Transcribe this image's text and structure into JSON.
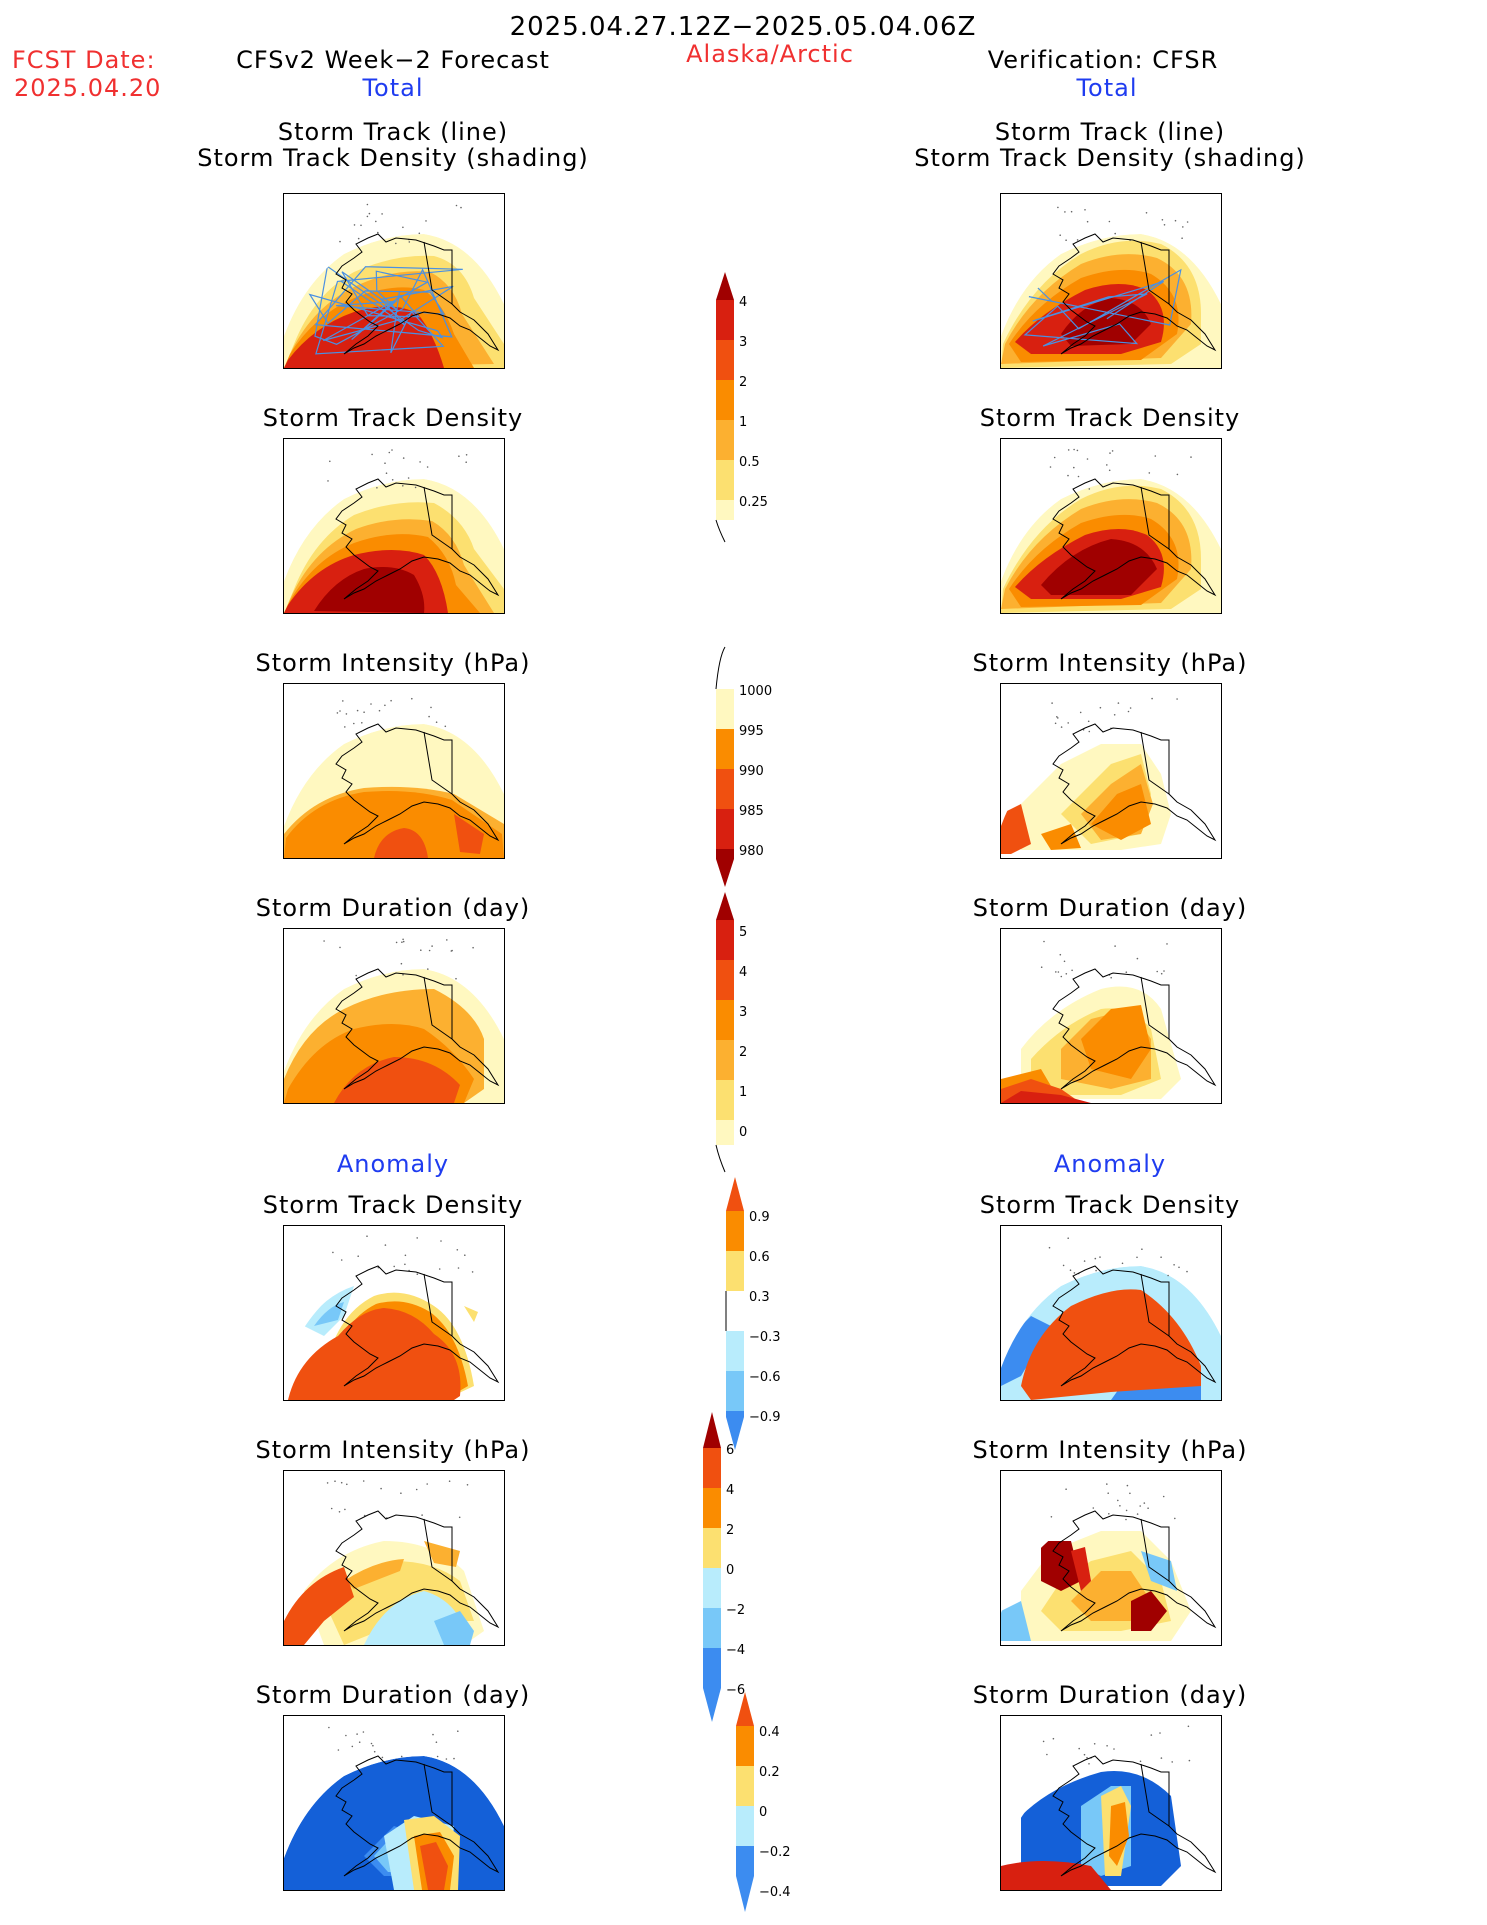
{
  "header": {
    "period": "2025.04.27.12Z−2025.05.04.06Z",
    "region": "Alaska/Arctic",
    "fcst_label": "FCST Date:",
    "fcst_date": "2025.04.20",
    "left_title": "CFSv2 Week−2 Forecast",
    "right_title": "Verification: CFSR",
    "left_subtitle": "Total",
    "right_subtitle": "Total",
    "anomaly_left": "Anomaly",
    "anomaly_right": "Anomaly"
  },
  "panel_titles": {
    "track_line": "Storm Track (line)",
    "track_shading": "Storm Track Density (shading)",
    "density": "Storm Track Density",
    "intensity": "Storm Intensity (hPa)",
    "duration": "Storm Duration (day)"
  },
  "colors": {
    "yellow_pale": "#fff8c0",
    "yellow": "#fce070",
    "orange_light": "#fcb030",
    "orange": "#fa8c00",
    "orange_red": "#f05010",
    "red": "#d82010",
    "dark_red": "#a00000",
    "blue_pale": "#b8ecfc",
    "blue_light": "#78c8f8",
    "blue": "#3c8cf0",
    "blue_dark": "#1460d8",
    "track_line": "#4a90e2",
    "coast": "#000000"
  },
  "colorbars": {
    "density_total": [
      "4",
      "3",
      "2",
      "1",
      "0.5",
      "0.25"
    ],
    "intensity_total": [
      "1000",
      "995",
      "990",
      "985",
      "980"
    ],
    "duration_total": [
      "5",
      "4",
      "3",
      "2",
      "1",
      "0"
    ],
    "density_anom": [
      "0.9",
      "0.6",
      "0.3",
      "−0.3",
      "−0.6",
      "−0.9"
    ],
    "intensity_anom": [
      "6",
      "4",
      "2",
      "0",
      "−2",
      "−4",
      "−6"
    ],
    "duration_anom": [
      "0.4",
      "0.2",
      "0",
      "−0.2",
      "−0.4"
    ]
  }
}
